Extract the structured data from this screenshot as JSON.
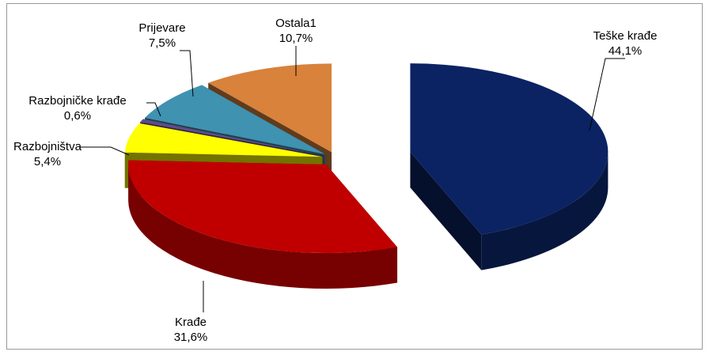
{
  "chart_data": {
    "type": "pie",
    "categories": [
      "Teške krađe",
      "Krađe",
      "Razbojništva",
      "Razbojničke krađe",
      "Prijevare",
      "Ostala1"
    ],
    "values": [
      44.1,
      31.6,
      5.4,
      0.6,
      7.5,
      10.7
    ],
    "value_labels": [
      "44,1%",
      "31,6%",
      "5,4%",
      "0,6%",
      "7,5%",
      "10,7%"
    ],
    "colors": [
      "#0b2363",
      "#c00000",
      "#ffff00",
      "#5f4b8b",
      "#3f92b0",
      "#d8823c"
    ]
  }
}
